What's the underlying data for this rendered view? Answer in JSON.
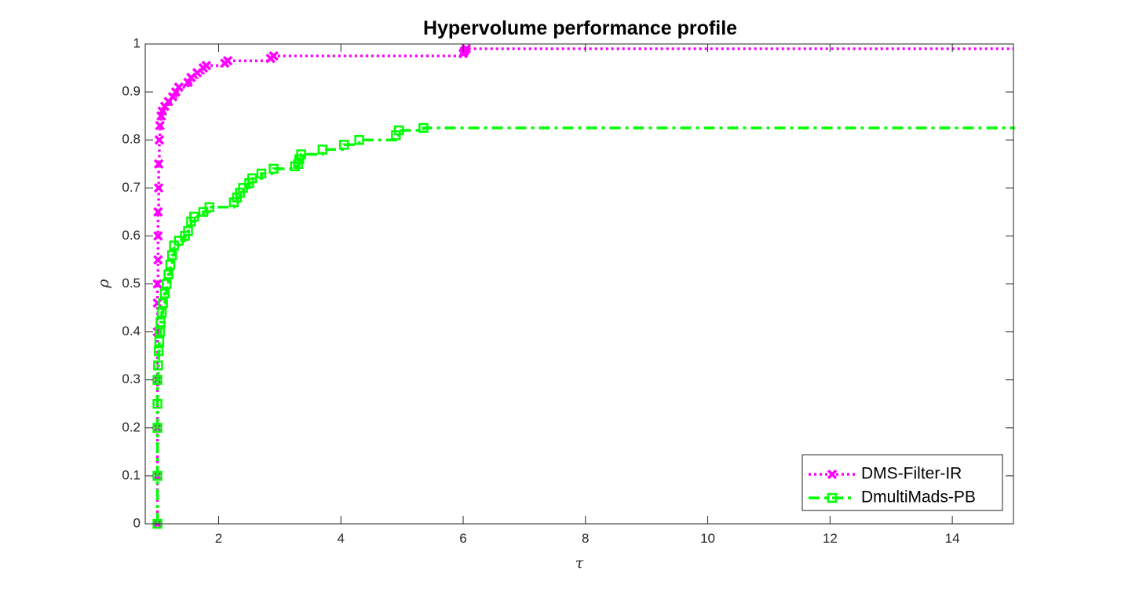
{
  "chart_data": {
    "type": "line",
    "title": "Hypervolume performance profile",
    "xlabel": "τ",
    "ylabel": "ρ",
    "xlim": [
      0.8,
      15
    ],
    "ylim": [
      0,
      1
    ],
    "x_ticks": [
      "2",
      "4",
      "6",
      "8",
      "10",
      "12",
      "14"
    ],
    "y_ticks": [
      "0",
      "0.1",
      "0.2",
      "0.3",
      "0.4",
      "0.5",
      "0.6",
      "0.7",
      "0.8",
      "0.9",
      "1"
    ],
    "grid": false,
    "legend_position": "bottom-right",
    "series": [
      {
        "name": "DMS-Filter-IR",
        "color": "#ff00ff",
        "line_style": "dotted",
        "marker": "x",
        "points": [
          [
            1.0,
            0.0
          ],
          [
            1.0,
            0.1
          ],
          [
            1.0,
            0.2
          ],
          [
            1.0,
            0.3
          ],
          [
            1.0,
            0.4
          ],
          [
            1.0,
            0.46
          ],
          [
            1.0,
            0.5
          ],
          [
            1.01,
            0.55
          ],
          [
            1.01,
            0.6
          ],
          [
            1.01,
            0.65
          ],
          [
            1.02,
            0.7
          ],
          [
            1.02,
            0.75
          ],
          [
            1.03,
            0.8
          ],
          [
            1.04,
            0.83
          ],
          [
            1.06,
            0.85
          ],
          [
            1.08,
            0.86
          ],
          [
            1.12,
            0.87
          ],
          [
            1.18,
            0.88
          ],
          [
            1.25,
            0.89
          ],
          [
            1.3,
            0.9
          ],
          [
            1.35,
            0.91
          ],
          [
            1.5,
            0.92
          ],
          [
            1.55,
            0.93
          ],
          [
            1.65,
            0.94
          ],
          [
            1.75,
            0.95
          ],
          [
            1.8,
            0.955
          ],
          [
            2.1,
            0.96
          ],
          [
            2.15,
            0.965
          ],
          [
            2.85,
            0.97
          ],
          [
            2.9,
            0.975
          ],
          [
            6.0,
            0.98
          ],
          [
            6.02,
            0.985
          ],
          [
            6.05,
            0.99
          ],
          [
            15.0,
            0.99
          ]
        ]
      },
      {
        "name": "DmultiMads-PB",
        "color": "#00ff00",
        "line_style": "dashdot",
        "marker": "square",
        "points": [
          [
            1.0,
            0.0
          ],
          [
            1.0,
            0.1
          ],
          [
            1.0,
            0.2
          ],
          [
            1.0,
            0.25
          ],
          [
            1.0,
            0.3
          ],
          [
            1.01,
            0.33
          ],
          [
            1.02,
            0.36
          ],
          [
            1.03,
            0.38
          ],
          [
            1.04,
            0.4
          ],
          [
            1.05,
            0.42
          ],
          [
            1.07,
            0.44
          ],
          [
            1.09,
            0.46
          ],
          [
            1.12,
            0.48
          ],
          [
            1.15,
            0.5
          ],
          [
            1.18,
            0.52
          ],
          [
            1.21,
            0.54
          ],
          [
            1.24,
            0.56
          ],
          [
            1.27,
            0.58
          ],
          [
            1.35,
            0.59
          ],
          [
            1.45,
            0.6
          ],
          [
            1.5,
            0.61
          ],
          [
            1.55,
            0.63
          ],
          [
            1.6,
            0.64
          ],
          [
            1.75,
            0.65
          ],
          [
            1.85,
            0.66
          ],
          [
            2.25,
            0.67
          ],
          [
            2.3,
            0.68
          ],
          [
            2.35,
            0.69
          ],
          [
            2.4,
            0.7
          ],
          [
            2.5,
            0.71
          ],
          [
            2.55,
            0.72
          ],
          [
            2.7,
            0.73
          ],
          [
            2.9,
            0.74
          ],
          [
            3.25,
            0.745
          ],
          [
            3.3,
            0.75
          ],
          [
            3.32,
            0.76
          ],
          [
            3.35,
            0.77
          ],
          [
            3.7,
            0.78
          ],
          [
            4.05,
            0.79
          ],
          [
            4.3,
            0.8
          ],
          [
            4.9,
            0.81
          ],
          [
            4.95,
            0.82
          ],
          [
            5.35,
            0.825
          ],
          [
            15.0,
            0.828
          ]
        ]
      }
    ]
  }
}
